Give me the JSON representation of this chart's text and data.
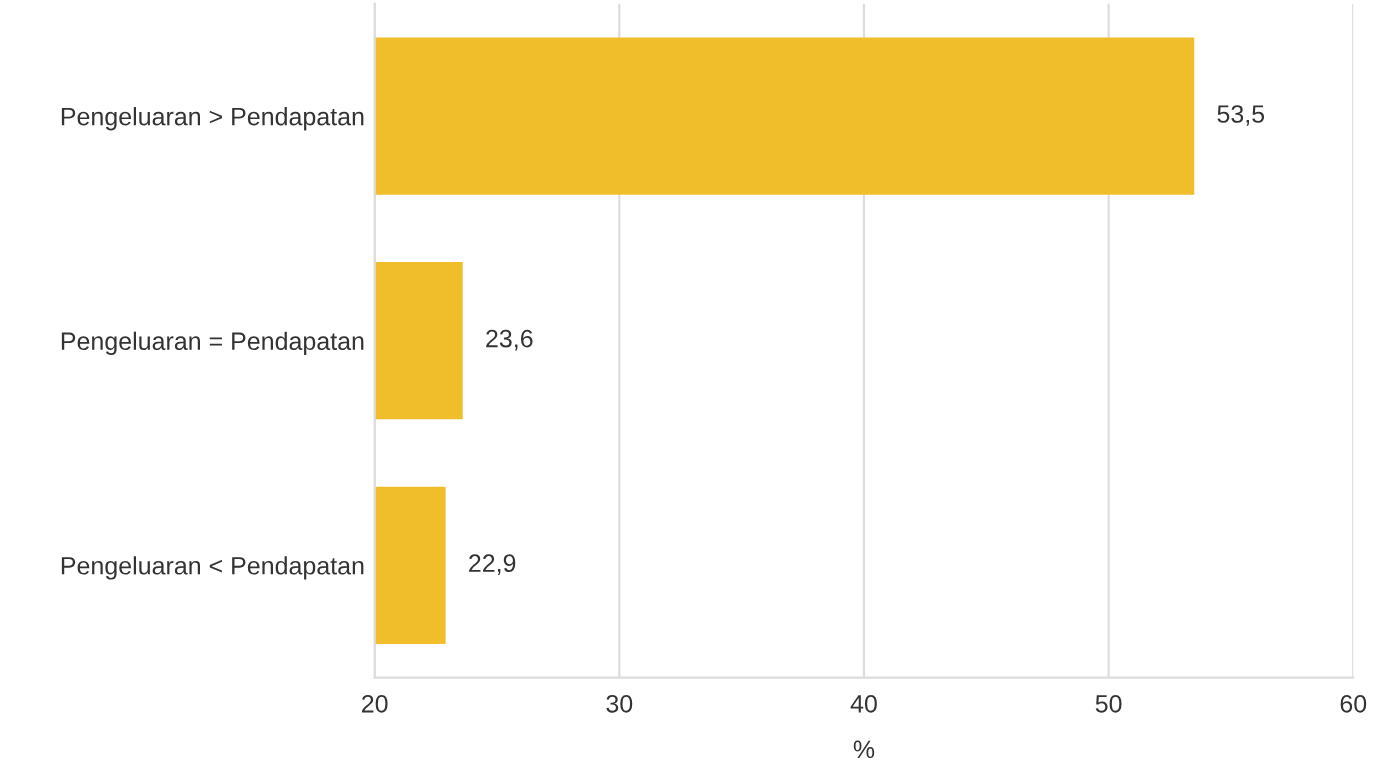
{
  "chart_data": {
    "type": "bar",
    "orientation": "horizontal",
    "categories": [
      "Pengeluaran > Pendapatan",
      "Pengeluaran = Pendapatan",
      "Pengeluaran < Pendapatan"
    ],
    "series": [
      {
        "color": "#f0be2a",
        "values": [
          53.5,
          23.6,
          22.9
        ],
        "value_labels": [
          "53,5",
          "23,6",
          "22,9"
        ]
      }
    ],
    "xlabel": "%",
    "xlim": [
      20,
      60
    ],
    "xticks": [
      20,
      30,
      40,
      50,
      60
    ],
    "grid": "x",
    "legend": false
  }
}
